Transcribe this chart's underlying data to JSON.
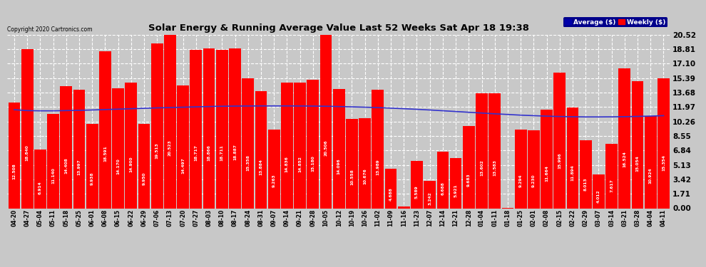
{
  "title": "Solar Energy & Running Average Value Last 52 Weeks Sat Apr 18 19:38",
  "copyright": "Copyright 2020 Cartronics.com",
  "bar_color": "#ff0000",
  "avg_line_color": "#3333cc",
  "background_color": "#c8c8c8",
  "plot_bg_color": "#c8c8c8",
  "grid_color": "#ffffff",
  "ylim": [
    0,
    20.52
  ],
  "yticks": [
    0.0,
    1.71,
    3.42,
    5.13,
    6.84,
    8.55,
    10.26,
    11.97,
    13.68,
    15.39,
    17.1,
    18.81,
    20.52
  ],
  "legend_avg_color": "#0000aa",
  "legend_weekly_color": "#ff0000",
  "dates": [
    "04-20",
    "04-27",
    "05-04",
    "05-11",
    "05-18",
    "05-25",
    "06-01",
    "06-08",
    "06-15",
    "06-22",
    "06-29",
    "07-06",
    "07-13",
    "07-20",
    "07-27",
    "08-03",
    "08-10",
    "08-17",
    "08-24",
    "08-31",
    "09-07",
    "09-14",
    "09-21",
    "09-28",
    "10-05",
    "10-12",
    "10-19",
    "10-26",
    "11-02",
    "11-09",
    "11-16",
    "11-23",
    "12-07",
    "12-14",
    "12-21",
    "12-28",
    "01-04",
    "01-11",
    "01-18",
    "01-25",
    "02-01",
    "02-08",
    "02-15",
    "02-22",
    "02-29",
    "03-07",
    "03-14",
    "03-21",
    "03-28",
    "04-04",
    "04-11"
  ],
  "weekly_values": [
    12.508,
    18.84,
    6.914,
    11.14,
    14.408,
    13.997,
    9.938,
    18.591,
    14.17,
    14.9,
    9.95,
    19.513,
    20.523,
    14.497,
    18.717,
    18.866,
    18.711,
    18.887,
    15.358,
    13.884,
    9.263,
    14.836,
    14.852,
    15.18,
    20.506,
    14.096,
    10.558,
    10.676,
    13.989,
    4.688,
    0.25,
    5.589,
    3.242,
    6.688,
    5.921,
    9.683,
    13.602,
    13.583,
    0.008,
    9.294,
    9.23,
    11.664,
    15.996,
    11.894,
    8.013,
    4.012,
    7.617,
    16.524,
    15.054,
    10.924,
    15.354
  ],
  "avg_values": [
    11.65,
    11.55,
    11.52,
    11.52,
    11.55,
    11.58,
    11.62,
    11.67,
    11.72,
    11.77,
    11.82,
    11.87,
    11.91,
    11.95,
    11.99,
    12.03,
    12.06,
    12.08,
    12.09,
    12.1,
    12.1,
    12.1,
    12.09,
    12.08,
    12.06,
    12.03,
    11.99,
    11.95,
    11.9,
    11.84,
    11.77,
    11.7,
    11.62,
    11.53,
    11.44,
    11.35,
    11.26,
    11.17,
    11.09,
    11.01,
    10.95,
    10.89,
    10.85,
    10.82,
    10.8,
    10.8,
    10.81,
    10.83,
    10.86,
    10.9,
    10.95
  ]
}
